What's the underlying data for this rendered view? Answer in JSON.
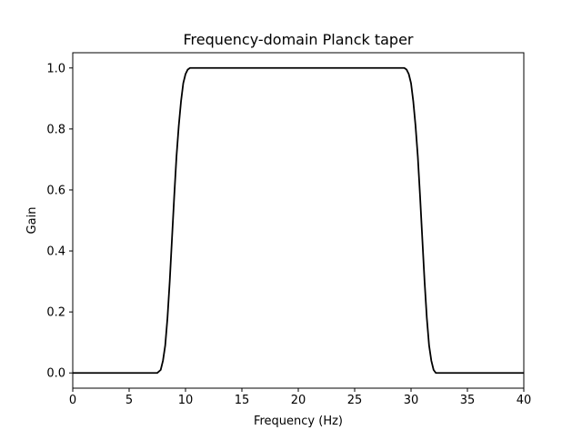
{
  "chart_data": {
    "type": "line",
    "title": "Frequency-domain Planck taper",
    "xlabel": "Frequency (Hz)",
    "ylabel": "Gain",
    "xlim": [
      0,
      40
    ],
    "ylim": [
      -0.05,
      1.05
    ],
    "xticks": [
      0,
      5,
      10,
      15,
      20,
      25,
      30,
      35,
      40
    ],
    "xtick_labels": [
      "0",
      "5",
      "10",
      "15",
      "20",
      "25",
      "30",
      "35",
      "40"
    ],
    "yticks": [
      0.0,
      0.2,
      0.4,
      0.6,
      0.8,
      1.0
    ],
    "ytick_labels": [
      "0.0",
      "0.2",
      "0.4",
      "0.6",
      "0.8",
      "1.0"
    ],
    "grid": false,
    "legend": "none",
    "series": [
      {
        "color": "#000000",
        "x": [
          0,
          2,
          4,
          6,
          7.0,
          7.5,
          7.8,
          8.0,
          8.2,
          8.4,
          8.6,
          8.8,
          9.0,
          9.2,
          9.4,
          9.6,
          9.8,
          10.0,
          10.2,
          10.4,
          10.6,
          11,
          15,
          20,
          25,
          29,
          29.4,
          29.6,
          29.8,
          30.0,
          30.2,
          30.4,
          30.6,
          30.8,
          31.0,
          31.2,
          31.4,
          31.6,
          31.8,
          32.0,
          32.2,
          32.5,
          33,
          35,
          40
        ],
        "y": [
          0,
          0,
          0,
          0,
          0,
          0.0,
          0.01,
          0.04,
          0.09,
          0.18,
          0.3,
          0.44,
          0.58,
          0.71,
          0.81,
          0.89,
          0.95,
          0.98,
          0.995,
          1.0,
          1.0,
          1.0,
          1.0,
          1.0,
          1.0,
          1.0,
          1.0,
          0.995,
          0.98,
          0.95,
          0.89,
          0.81,
          0.71,
          0.58,
          0.44,
          0.3,
          0.18,
          0.09,
          0.04,
          0.01,
          0.0,
          0,
          0,
          0,
          0
        ]
      }
    ]
  }
}
